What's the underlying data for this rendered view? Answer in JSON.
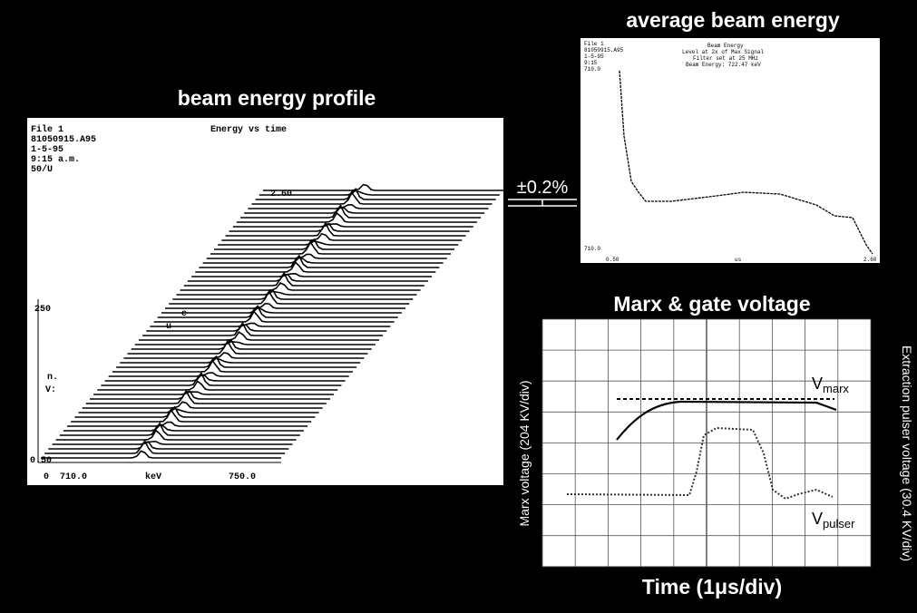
{
  "profile": {
    "title": "beam energy profile",
    "file": "File 1",
    "filename": "81050915.A95",
    "date": "1-5-95",
    "time": "9:15 a.m.",
    "scale": "50/U",
    "plot_title": "Energy vs time",
    "t_top": "2.60",
    "t_mid": "250",
    "t_bottom": "0.50",
    "x_zero": "0",
    "x_left": "710.0",
    "x_unit": "keV",
    "x_right": "750.0",
    "side_mark_1": "e",
    "side_mark_2": "u",
    "side_mark_3": "n.",
    "side_mark_4": "V:"
  },
  "average": {
    "title": "average beam energy",
    "file": "File 1",
    "filename": "81050915.A95",
    "date": "1-5-95",
    "time": "9:15",
    "value": "710.0",
    "info_1": "Beam Energy",
    "info_2": "Level at 2x of Max Signal",
    "info_3": "Filter set at 25 MHz",
    "info_4": "Beam Energy: 722.47 keV",
    "y_bottom": "710.0",
    "x_left": "0.50",
    "x_mid": "us",
    "x_right": "2.60"
  },
  "tolerance": "±0.2%",
  "scope": {
    "title": "Marx & gate voltage",
    "x_label": "Time (1μs/div)",
    "y_label": "Marx voltage (204 KV/div)",
    "y2_label": "Extraction pulser voltage (30.4 KV/div)",
    "marx": {
      "symbol": "V",
      "subscript": "marx"
    },
    "pulser": {
      "symbol": "V",
      "subscript": "pulser"
    }
  }
}
